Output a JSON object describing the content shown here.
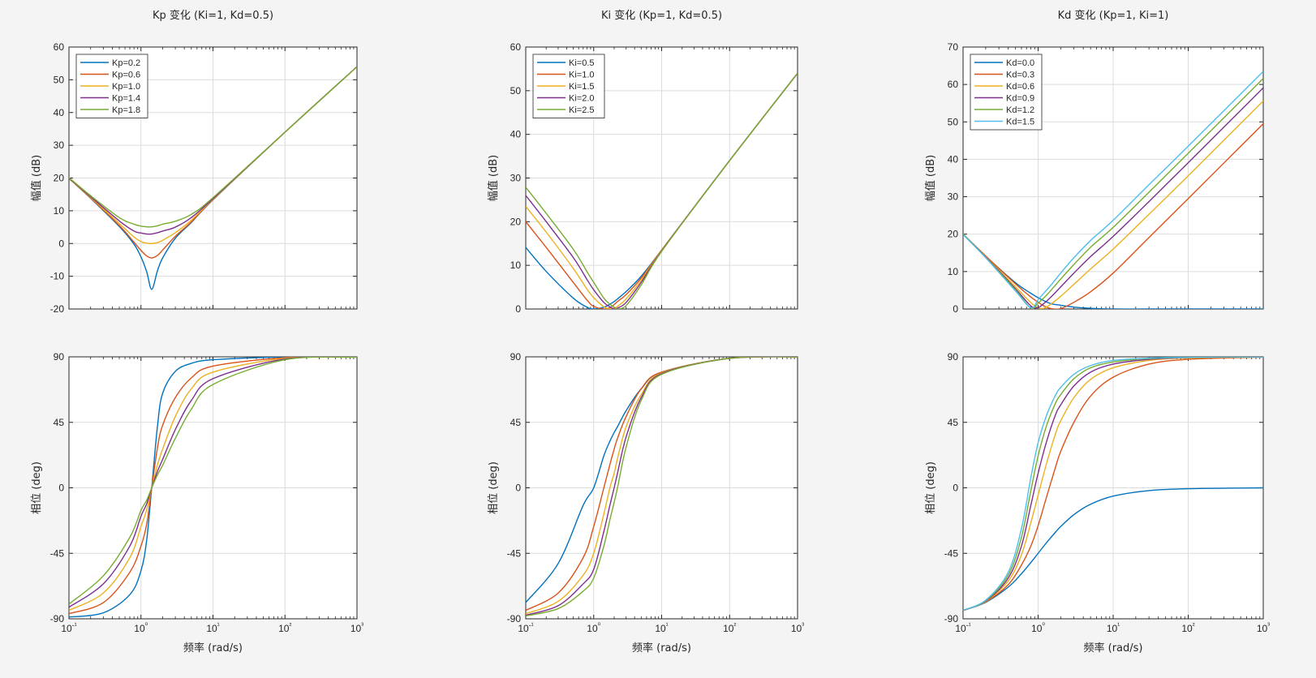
{
  "chart_data": [
    {
      "type": "line",
      "panel": "magnitude",
      "title": "Kp 变化 (Ki=1, Kd=0.5)",
      "xlabel": "",
      "ylabel": "幅值 (dB)",
      "xscale": "log",
      "xlim": [
        0.1,
        1000
      ],
      "ylim": [
        -20,
        60
      ],
      "yticks": [
        -20,
        -10,
        0,
        10,
        20,
        30,
        40,
        50,
        60
      ],
      "grid": true,
      "legend": "top-left",
      "x": [
        0.1,
        0.2,
        0.5,
        0.8,
        1.0,
        1.2,
        1.41,
        1.7,
        2.0,
        3.0,
        5.0,
        10,
        100,
        1000
      ],
      "series": [
        {
          "name": "Kp=0.2",
          "color": "#0072BD",
          "values": [
            19.9,
            13.8,
            5.2,
            -0.2,
            -4.1,
            -8.6,
            -14.0,
            -8.2,
            -4.4,
            1.6,
            6.4,
            13.3,
            34.0,
            54.0
          ]
        },
        {
          "name": "Kp=0.6",
          "color": "#D95319",
          "values": [
            19.9,
            13.9,
            5.5,
            0.4,
            -2.1,
            -3.8,
            -4.4,
            -3.6,
            -2.0,
            2.2,
            6.6,
            13.4,
            34.0,
            54.0
          ]
        },
        {
          "name": "Kp=1.0",
          "color": "#EDB120",
          "values": [
            20.0,
            14.1,
            6.1,
            2.0,
            0.6,
            0.1,
            0.0,
            0.3,
            1.0,
            3.3,
            7.1,
            13.5,
            34.0,
            54.0
          ]
        },
        {
          "name": "Kp=1.4",
          "color": "#7E2F8E",
          "values": [
            20.0,
            14.3,
            6.9,
            3.8,
            3.2,
            2.9,
            2.9,
            3.3,
            3.8,
            5.0,
            7.9,
            13.7,
            34.0,
            54.0
          ]
        },
        {
          "name": "Kp=1.8",
          "color": "#77AC30",
          "values": [
            20.1,
            14.6,
            7.9,
            5.9,
            5.3,
            5.1,
            5.1,
            5.4,
            5.9,
            6.8,
            8.9,
            14.0,
            34.0,
            54.0
          ]
        }
      ]
    },
    {
      "type": "line",
      "panel": "magnitude",
      "title": "Ki 变化 (Kp=1, Kd=0.5)",
      "xlabel": "",
      "ylabel": "幅值 (dB)",
      "xscale": "log",
      "xlim": [
        0.1,
        1000
      ],
      "ylim": [
        0,
        60
      ],
      "yticks": [
        0,
        10,
        20,
        30,
        40,
        50,
        60
      ],
      "grid": true,
      "legend": "top-left",
      "x": [
        0.1,
        0.2,
        0.5,
        0.8,
        1.0,
        1.41,
        1.73,
        2.0,
        2.24,
        3.0,
        5.0,
        10,
        100,
        1000
      ],
      "series": [
        {
          "name": "Ki=0.5",
          "color": "#0072BD",
          "values": [
            14.1,
            8.6,
            2.5,
            0.4,
            0.0,
            0.4,
            1.1,
            1.7,
            2.3,
            4.0,
            7.5,
            13.5,
            34.0,
            54.0
          ]
        },
        {
          "name": "Ki=1.0",
          "color": "#D95319",
          "values": [
            20.0,
            14.1,
            6.1,
            2.0,
            0.6,
            0.0,
            0.3,
            1.0,
            1.7,
            3.3,
            7.1,
            13.5,
            34.0,
            54.0
          ]
        },
        {
          "name": "Ki=1.5",
          "color": "#EDB120",
          "values": [
            23.5,
            17.6,
            9.3,
            4.5,
            2.6,
            0.5,
            0.0,
            0.2,
            0.6,
            2.3,
            6.6,
            13.4,
            34.0,
            54.0
          ]
        },
        {
          "name": "Ki=2.0",
          "color": "#7E2F8E",
          "values": [
            26.0,
            20.0,
            11.8,
            6.7,
            4.4,
            1.5,
            0.5,
            0.0,
            0.2,
            1.5,
            6.1,
            13.3,
            34.0,
            54.0
          ]
        },
        {
          "name": "Ki=2.5",
          "color": "#77AC30",
          "values": [
            27.9,
            21.9,
            13.7,
            8.5,
            6.1,
            2.5,
            1.1,
            0.4,
            0.0,
            0.8,
            5.5,
            13.2,
            34.0,
            54.0
          ]
        }
      ]
    },
    {
      "type": "line",
      "panel": "magnitude",
      "title": "Kd 变化 (Kp=1, Ki=1)",
      "xlabel": "",
      "ylabel": "幅值 (dB)",
      "xscale": "log",
      "xlim": [
        0.1,
        1000
      ],
      "ylim": [
        0,
        70
      ],
      "yticks": [
        0,
        10,
        20,
        30,
        40,
        50,
        60,
        70
      ],
      "grid": true,
      "legend": "top-left",
      "x": [
        0.1,
        0.2,
        0.5,
        0.8,
        1.0,
        1.2,
        1.5,
        2.0,
        3.0,
        5.0,
        10,
        30,
        100,
        1000
      ],
      "series": [
        {
          "name": "Kd=0.0",
          "color": "#0072BD",
          "values": [
            20.0,
            14.1,
            7.0,
            4.2,
            3.0,
            2.2,
            1.4,
            1.0,
            0.5,
            0.2,
            0.0,
            0.0,
            0.0,
            0.0
          ]
        },
        {
          "name": "Kd=0.3",
          "color": "#D95319",
          "values": [
            20.0,
            14.2,
            6.7,
            3.2,
            1.8,
            0.8,
            0.1,
            0.1,
            1.8,
            4.6,
            9.6,
            19.1,
            29.5,
            49.5
          ]
        },
        {
          "name": "Kd=0.6",
          "color": "#EDB120",
          "values": [
            20.0,
            14.0,
            5.9,
            1.7,
            0.3,
            0.2,
            1.4,
            3.4,
            6.6,
            10.7,
            16.0,
            25.3,
            35.6,
            55.6
          ]
        },
        {
          "name": "Kd=0.9",
          "color": "#7E2F8E",
          "values": [
            20.0,
            13.9,
            5.4,
            0.8,
            0.4,
            1.5,
            3.3,
            5.9,
            9.6,
            14.0,
            19.4,
            28.7,
            39.1,
            59.1
          ]
        },
        {
          "name": "Kd=1.2",
          "color": "#77AC30",
          "values": [
            20.0,
            13.8,
            5.1,
            0.2,
            1.6,
            3.0,
            5.1,
            8.0,
            11.9,
            16.5,
            21.8,
            31.2,
            41.6,
            61.6
          ]
        },
        {
          "name": "Kd=1.5",
          "color": "#4DBEEE",
          "values": [
            19.9,
            13.7,
            4.8,
            0.3,
            2.5,
            4.3,
            6.5,
            9.6,
            13.7,
            18.3,
            23.7,
            33.2,
            43.5,
            63.5
          ]
        }
      ]
    },
    {
      "type": "line",
      "panel": "phase",
      "title": "",
      "xlabel": "频率 (rad/s)",
      "ylabel": "相位 (deg)",
      "xscale": "log",
      "xlim": [
        0.1,
        1000
      ],
      "ylim": [
        -90,
        90
      ],
      "yticks": [
        -90,
        -45,
        0,
        45,
        90
      ],
      "grid": true,
      "x": [
        0.1,
        0.3,
        0.7,
        1.0,
        1.2,
        1.41,
        1.7,
        2.0,
        3.0,
        5.0,
        10,
        100,
        1000
      ],
      "series": [
        {
          "name": "Kp=0.2",
          "color": "#0072BD",
          "values": [
            -88.8,
            -85.9,
            -73.4,
            -57.0,
            -36.0,
            0.0,
            43.0,
            65.0,
            80.0,
            85.5,
            88.0,
            89.9,
            90.0
          ]
        },
        {
          "name": "Kp=0.6",
          "color": "#D95319",
          "values": [
            -86.5,
            -78.9,
            -58.0,
            -40.0,
            -25.0,
            0.0,
            28.0,
            43.0,
            62.0,
            75.5,
            83.6,
            89.4,
            90.0
          ]
        },
        {
          "name": "Kp=1.0",
          "color": "#EDB120",
          "values": [
            -84.2,
            -72.3,
            -48.0,
            -26.6,
            -15.0,
            0.0,
            16.0,
            26.6,
            49.0,
            68.0,
            79.5,
            89.0,
            89.9
          ]
        },
        {
          "name": "Kp=1.4",
          "color": "#7E2F8E",
          "values": [
            -82.0,
            -66.0,
            -40.0,
            -19.5,
            -11.0,
            0.0,
            11.5,
            19.5,
            40.0,
            60.0,
            75.0,
            88.5,
            89.9
          ]
        },
        {
          "name": "Kp=1.8",
          "color": "#77AC30",
          "values": [
            -79.9,
            -60.5,
            -34.0,
            -15.5,
            -8.5,
            0.0,
            9.0,
            15.5,
            34.0,
            54.0,
            71.0,
            88.0,
            89.8
          ]
        }
      ]
    },
    {
      "type": "line",
      "panel": "phase",
      "title": "",
      "xlabel": "频率 (rad/s)",
      "ylabel": "相位 (deg)",
      "xscale": "log",
      "xlim": [
        0.1,
        1000
      ],
      "ylim": [
        -90,
        90
      ],
      "yticks": [
        -90,
        -45,
        0,
        45,
        90
      ],
      "grid": true,
      "x": [
        0.1,
        0.3,
        0.7,
        1.0,
        1.41,
        1.73,
        2.0,
        2.24,
        3.0,
        5.0,
        10,
        100,
        1000
      ],
      "series": [
        {
          "name": "Ki=0.5",
          "color": "#0072BD",
          "values": [
            -78.8,
            -52.0,
            -12.0,
            0.0,
            22.0,
            32.0,
            38.0,
            42.0,
            53.0,
            68.0,
            79.5,
            89.0,
            90.0
          ]
        },
        {
          "name": "Ki=1.0",
          "color": "#D95319",
          "values": [
            -84.2,
            -72.3,
            -48.0,
            -26.6,
            0.0,
            16.0,
            26.6,
            34.0,
            49.0,
            68.0,
            79.5,
            89.0,
            90.0
          ]
        },
        {
          "name": "Ki=1.5",
          "color": "#EDB120",
          "values": [
            -86.5,
            -78.0,
            -60.0,
            -45.0,
            -18.0,
            0.0,
            10.0,
            20.0,
            42.0,
            64.0,
            79.0,
            89.0,
            90.0
          ]
        },
        {
          "name": "Ki=2.0",
          "color": "#7E2F8E",
          "values": [
            -87.5,
            -81.0,
            -66.0,
            -56.0,
            -30.0,
            -12.0,
            0.0,
            10.0,
            35.0,
            62.0,
            78.5,
            89.0,
            90.0
          ]
        },
        {
          "name": "Ki=2.5",
          "color": "#77AC30",
          "values": [
            -88.0,
            -83.0,
            -71.0,
            -62.0,
            -40.0,
            -22.0,
            -10.0,
            0.0,
            28.0,
            60.0,
            78.0,
            89.0,
            90.0
          ]
        }
      ]
    },
    {
      "type": "line",
      "panel": "phase",
      "title": "",
      "xlabel": "频率 (rad/s)",
      "ylabel": "相位 (deg)",
      "xscale": "log",
      "xlim": [
        0.1,
        1000
      ],
      "ylim": [
        -90,
        90
      ],
      "yticks": [
        -90,
        -45,
        0,
        45,
        90
      ],
      "grid": true,
      "x": [
        0.1,
        0.2,
        0.4,
        0.6,
        0.8,
        1.0,
        1.3,
        1.7,
        2.0,
        3.0,
        5.0,
        10,
        30,
        100,
        1000
      ],
      "series": [
        {
          "name": "Kd=0.0",
          "color": "#0072BD",
          "values": [
            -84.3,
            -78.7,
            -68.2,
            -59.0,
            -51.3,
            -45.0,
            -37.6,
            -30.5,
            -26.6,
            -18.4,
            -11.3,
            -5.7,
            -1.9,
            -0.6,
            0.0
          ]
        },
        {
          "name": "Kd=0.3",
          "color": "#D95319",
          "values": [
            -84.3,
            -78.4,
            -66.5,
            -53.0,
            -40.0,
            -26.0,
            -6.0,
            14.0,
            25.0,
            45.0,
            63.0,
            76.0,
            85.0,
            88.3,
            89.8
          ]
        },
        {
          "name": "Kd=0.6",
          "color": "#EDB120",
          "values": [
            -84.2,
            -78.1,
            -64.0,
            -46.0,
            -24.0,
            -5.0,
            17.0,
            37.0,
            46.0,
            62.0,
            74.5,
            82.5,
            87.5,
            89.2,
            89.9
          ]
        },
        {
          "name": "Kd=0.9",
          "color": "#7E2F8E",
          "values": [
            -84.2,
            -77.8,
            -62.0,
            -40.0,
            -12.0,
            10.0,
            32.0,
            50.0,
            57.0,
            70.0,
            79.5,
            85.0,
            88.3,
            89.5,
            89.9
          ]
        },
        {
          "name": "Kd=1.2",
          "color": "#77AC30",
          "values": [
            -84.2,
            -77.5,
            -60.0,
            -34.0,
            -2.0,
            22.0,
            43.0,
            58.0,
            64.0,
            75.0,
            82.5,
            86.5,
            88.8,
            89.6,
            90.0
          ]
        },
        {
          "name": "Kd=1.5",
          "color": "#4DBEEE",
          "values": [
            -84.2,
            -77.2,
            -58.0,
            -28.0,
            7.0,
            31.0,
            50.0,
            63.5,
            69.0,
            78.0,
            84.0,
            87.5,
            89.1,
            89.7,
            90.0
          ]
        }
      ]
    }
  ]
}
